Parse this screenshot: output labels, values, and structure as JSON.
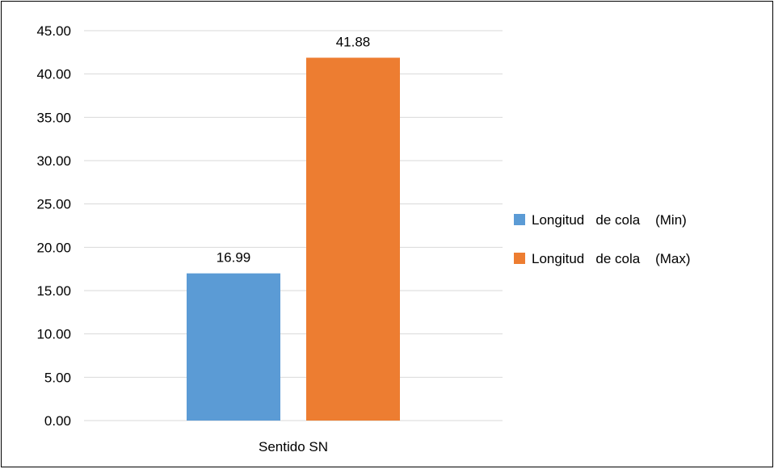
{
  "chart_data": {
    "type": "bar",
    "categories": [
      "Sentido SN"
    ],
    "series": [
      {
        "name": "Longitud   de cola    (Min)",
        "values": [
          16.99
        ],
        "color": "#5B9BD5"
      },
      {
        "name": "Longitud   de cola    (Max)",
        "values": [
          41.88
        ],
        "color": "#ED7D31"
      }
    ],
    "data_labels": [
      "16.99",
      "41.88"
    ],
    "y_ticks": [
      "0.00",
      "5.00",
      "10.00",
      "15.00",
      "20.00",
      "25.00",
      "30.00",
      "35.00",
      "40.00",
      "45.00"
    ],
    "ylim": [
      0,
      45
    ],
    "grid": true,
    "legend_position": "right",
    "title": "",
    "xlabel": "",
    "ylabel": ""
  }
}
